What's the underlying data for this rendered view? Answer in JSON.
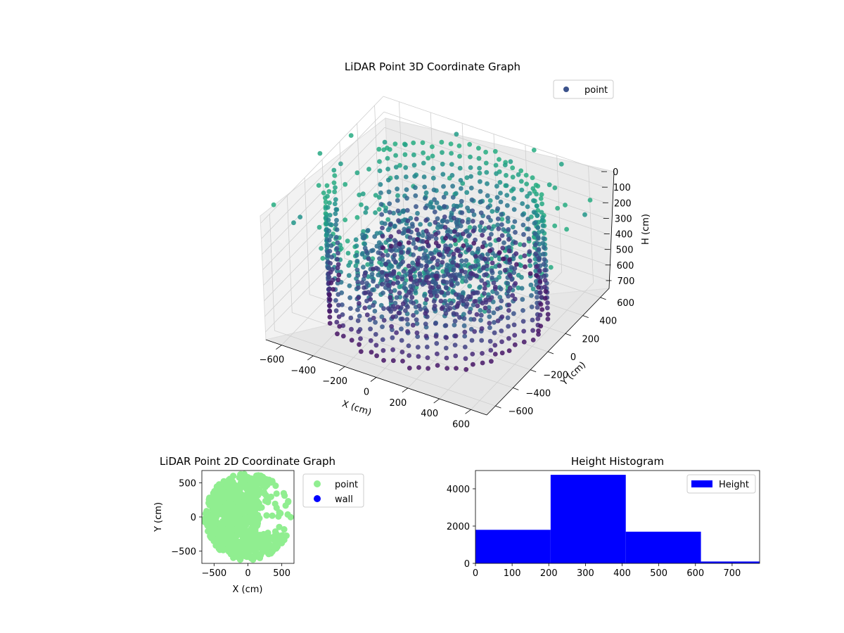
{
  "chart_data": [
    {
      "type": "scatter",
      "title": "LiDAR Point 3D Coordinate Graph",
      "xlabel": "X (cm)",
      "ylabel": "Y (cm)",
      "zlabel": "H (cm)",
      "projection": "3d",
      "x_ticks": [
        "−600",
        "−400",
        "−200",
        "0",
        "200",
        "400",
        "600"
      ],
      "y_ticks": [
        "−600",
        "−400",
        "−200",
        "0",
        "200",
        "400",
        "600"
      ],
      "z_ticks": [
        "0",
        "100",
        "200",
        "300",
        "400",
        "500",
        "600",
        "700"
      ],
      "xlim": [
        -700,
        700
      ],
      "ylim": [
        -700,
        700
      ],
      "zlim": [
        0,
        750
      ],
      "z_axis_inverted": true,
      "legend": {
        "entries": [
          "point"
        ],
        "position": "upper-right"
      },
      "colormap": "viridis (purple = high, teal = low)",
      "description_of_data": "ring of points at radius about 600 cm spanning H 50 to 700, dense central cluster near origin, scattered low points",
      "series": [
        {
          "name": "point",
          "color": "#3b528b"
        }
      ]
    },
    {
      "type": "scatter",
      "title": "LiDAR Point 2D Coordinate Graph",
      "xlabel": "X (cm)",
      "ylabel": "Y (cm)",
      "x_ticks": [
        "−500",
        "0",
        "500"
      ],
      "y_ticks": [
        "−500",
        "0",
        "500"
      ],
      "xlim": [
        -680,
        680
      ],
      "ylim": [
        -680,
        680
      ],
      "legend": {
        "entries": [
          "point",
          "wall"
        ],
        "position": "outside-right"
      },
      "series": [
        {
          "name": "point",
          "color": "#90ee90"
        },
        {
          "name": "wall",
          "color": "#0000ff"
        }
      ]
    },
    {
      "type": "bar",
      "title": "Height Histogram",
      "xlabel": "",
      "ylabel": "",
      "bins": [
        {
          "start": 0,
          "end": 205,
          "count": 1800
        },
        {
          "start": 205,
          "end": 410,
          "count": 4750
        },
        {
          "start": 410,
          "end": 615,
          "count": 1700
        },
        {
          "start": 615,
          "end": 775,
          "count": 100
        }
      ],
      "x_ticks": [
        "0",
        "100",
        "200",
        "300",
        "400",
        "500",
        "600",
        "700"
      ],
      "y_ticks": [
        "0",
        "2000",
        "4000"
      ],
      "xlim": [
        0,
        775
      ],
      "ylim": [
        0,
        4980
      ],
      "legend": {
        "entries": [
          "Height"
        ],
        "position": "upper-right"
      },
      "series": [
        {
          "name": "Height",
          "color": "#0000ff"
        }
      ]
    }
  ]
}
